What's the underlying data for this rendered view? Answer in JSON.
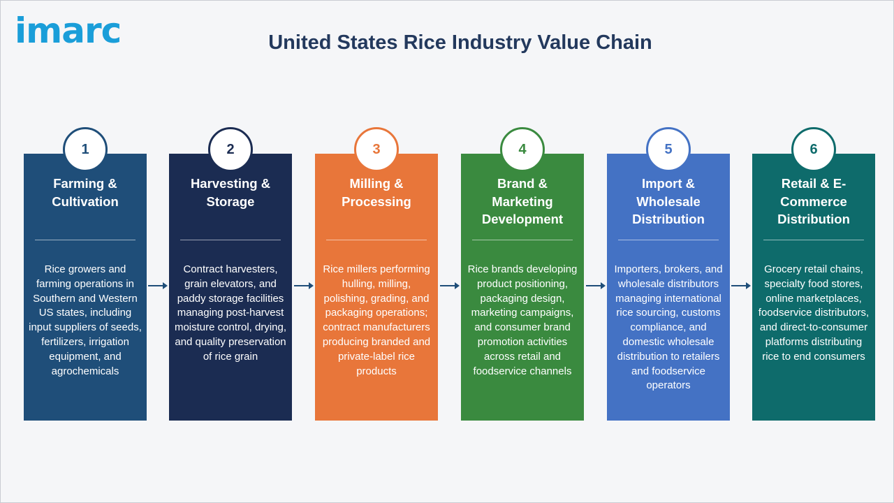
{
  "header": {
    "logo_text": "imarc",
    "title": "United States Rice Industry Value Chain"
  },
  "stages": [
    {
      "number": "1",
      "title": "Farming & Cultivation",
      "description": "Rice growers and farming operations in Southern and Western US states, including input suppliers of seeds, fertilizers, irrigation equipment, and agrochemicals",
      "color": "#1f4e79",
      "number_color": "#1f4e79"
    },
    {
      "number": "2",
      "title": "Harvesting & Storage",
      "description": "Contract harvesters, grain elevators, and paddy storage facilities managing post-harvest moisture control, drying, and quality preservation of rice grain",
      "color": "#1b2c52",
      "number_color": "#1b2c52"
    },
    {
      "number": "3",
      "title": "Milling & Processing",
      "description": "Rice millers performing hulling, milling, polishing, grading, and packaging operations; contract manufacturers producing branded and private-label rice products",
      "color": "#e8763a",
      "number_color": "#e8763a"
    },
    {
      "number": "4",
      "title": "Brand & Marketing Development",
      "description": "Rice brands developing product positioning, packaging design, marketing campaigns, and consumer brand promotion activities across retail and foodservice channels",
      "color": "#3a8a3f",
      "number_color": "#3a8a3f"
    },
    {
      "number": "5",
      "title": "Import & Wholesale Distribution",
      "description": "Importers, brokers, and wholesale distributors managing international rice sourcing, customs compliance, and domestic wholesale distribution to retailers and foodservice operators",
      "color": "#4472c4",
      "number_color": "#4472c4"
    },
    {
      "number": "6",
      "title": "Retail & E-Commerce Distribution",
      "description": "Grocery retail chains, specialty food stores, online marketplaces, foodservice distributors, and direct-to-consumer platforms distributing rice to end consumers",
      "color": "#0e6b6b",
      "number_color": "#0e6b6b"
    }
  ],
  "arrow_color": "#1f4e79"
}
